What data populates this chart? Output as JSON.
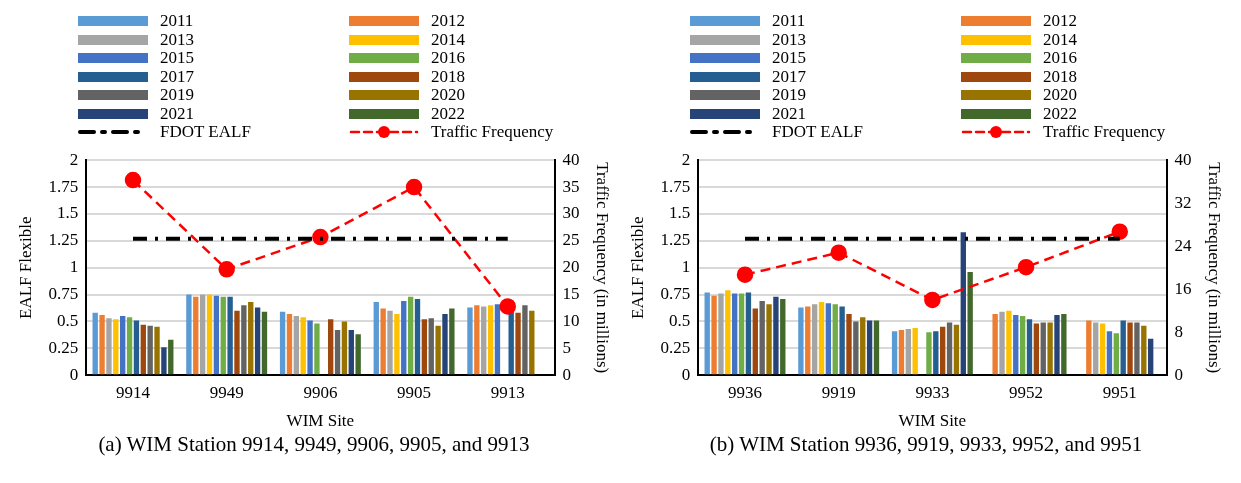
{
  "chart_data": [
    {
      "type": "bar",
      "xlabel": "WIM Site",
      "ylabel": "EALF Flexible",
      "y2label": "Traffic Frequency (in millions)",
      "annotations": [
        "(a) WIM Station 9914, 9949, 9906, 9905, and 9913"
      ],
      "categories": [
        "9914",
        "9949",
        "9906",
        "9905",
        "9913"
      ],
      "ylim": [
        0,
        2
      ],
      "yticks": [
        0,
        0.25,
        0.5,
        0.75,
        1,
        1.25,
        1.5,
        1.75,
        2
      ],
      "y2lim": [
        0,
        40
      ],
      "y2ticks": [
        0,
        5,
        10,
        15,
        20,
        25,
        30,
        35,
        40
      ],
      "grid": "y",
      "legend": "top",
      "series": [
        {
          "name": "2011",
          "color": "#5b9bd5",
          "values": [
            0.58,
            0.75,
            0.59,
            0.68,
            0.63
          ]
        },
        {
          "name": "2012",
          "color": "#ed7d31",
          "values": [
            0.56,
            0.73,
            0.57,
            0.62,
            0.65
          ]
        },
        {
          "name": "2013",
          "color": "#a5a5a5",
          "values": [
            0.53,
            0.75,
            0.55,
            0.6,
            0.64
          ]
        },
        {
          "name": "2014",
          "color": "#ffc000",
          "values": [
            0.52,
            0.75,
            0.54,
            0.57,
            0.65
          ]
        },
        {
          "name": "2015",
          "color": "#4472c4",
          "values": [
            0.55,
            0.74,
            0.51,
            0.69,
            0.66
          ]
        },
        {
          "name": "2016",
          "color": "#70ad47",
          "values": [
            0.54,
            0.73,
            0.48,
            0.73,
            null
          ]
        },
        {
          "name": "2017",
          "color": "#255e91",
          "values": [
            0.51,
            0.73,
            null,
            0.71,
            0.6
          ]
        },
        {
          "name": "2018",
          "color": "#9e480e",
          "values": [
            0.47,
            0.6,
            0.52,
            0.52,
            0.58
          ]
        },
        {
          "name": "2019",
          "color": "#636363",
          "values": [
            0.46,
            0.65,
            0.42,
            0.53,
            0.65
          ]
        },
        {
          "name": "2020",
          "color": "#997300",
          "values": [
            0.45,
            0.68,
            0.5,
            0.46,
            0.6
          ]
        },
        {
          "name": "2021",
          "color": "#264478",
          "values": [
            0.26,
            0.63,
            0.42,
            0.57,
            null
          ]
        },
        {
          "name": "2022",
          "color": "#43682b",
          "values": [
            0.33,
            0.59,
            0.38,
            0.62,
            null
          ]
        },
        {
          "name": "FDOT EALF",
          "type": "line",
          "color": "#000000",
          "marker": "none",
          "line_style": "dashed",
          "values": [
            1.27,
            1.27,
            1.27,
            1.27,
            1.27
          ]
        },
        {
          "name": "Traffic Frequency",
          "type": "line",
          "axis": "y2",
          "color": "#ff0000",
          "marker": "circle",
          "line_style": "dashed",
          "values": [
            36.3,
            19.7,
            25.7,
            35,
            12.8
          ]
        }
      ]
    },
    {
      "type": "bar",
      "xlabel": "WIM Site",
      "ylabel": "EALF Flexible",
      "y2label": "Traffic Frequency (in millions)",
      "annotations": [
        "(b) WIM Station 9936, 9919, 9933, 9952, and 9951"
      ],
      "categories": [
        "9936",
        "9919",
        "9933",
        "9952",
        "9951"
      ],
      "ylim": [
        0,
        2
      ],
      "yticks": [
        0,
        0.25,
        0.5,
        0.75,
        1,
        1.25,
        1.5,
        1.75,
        2
      ],
      "y2lim": [
        0,
        40
      ],
      "y2ticks": [
        0,
        8,
        16,
        24,
        32,
        40
      ],
      "grid": "y",
      "legend": "top",
      "series": [
        {
          "name": "2011",
          "color": "#5b9bd5",
          "values": [
            0.77,
            0.63,
            0.41,
            null,
            null
          ]
        },
        {
          "name": "2012",
          "color": "#ed7d31",
          "values": [
            0.74,
            0.64,
            0.42,
            0.57,
            0.51
          ]
        },
        {
          "name": "2013",
          "color": "#a5a5a5",
          "values": [
            0.76,
            0.66,
            0.43,
            0.59,
            0.49
          ]
        },
        {
          "name": "2014",
          "color": "#ffc000",
          "values": [
            0.79,
            0.68,
            0.44,
            0.6,
            0.48
          ]
        },
        {
          "name": "2015",
          "color": "#4472c4",
          "values": [
            0.76,
            0.67,
            null,
            0.56,
            0.41
          ]
        },
        {
          "name": "2016",
          "color": "#70ad47",
          "values": [
            0.76,
            0.66,
            0.4,
            0.55,
            0.39
          ]
        },
        {
          "name": "2017",
          "color": "#255e91",
          "values": [
            0.77,
            0.64,
            0.41,
            0.52,
            0.51
          ]
        },
        {
          "name": "2018",
          "color": "#9e480e",
          "values": [
            0.62,
            0.57,
            0.45,
            0.48,
            0.49
          ]
        },
        {
          "name": "2019",
          "color": "#636363",
          "values": [
            0.69,
            0.5,
            0.49,
            0.49,
            0.49
          ]
        },
        {
          "name": "2020",
          "color": "#997300",
          "values": [
            0.66,
            0.54,
            0.47,
            0.49,
            0.46
          ]
        },
        {
          "name": "2021",
          "color": "#264478",
          "values": [
            0.73,
            0.51,
            1.33,
            0.56,
            0.34
          ]
        },
        {
          "name": "2022",
          "color": "#43682b",
          "values": [
            0.71,
            0.51,
            0.96,
            0.57,
            null
          ]
        },
        {
          "name": "FDOT EALF",
          "type": "line",
          "color": "#000000",
          "marker": "none",
          "line_style": "dashed",
          "values": [
            1.27,
            1.27,
            1.27,
            1.27,
            1.27
          ]
        },
        {
          "name": "Traffic Frequency",
          "type": "line",
          "axis": "y2",
          "color": "#ff0000",
          "marker": "circle",
          "line_style": "dashed",
          "values": [
            18.7,
            22.8,
            14,
            20.1,
            26.7
          ]
        }
      ]
    }
  ]
}
